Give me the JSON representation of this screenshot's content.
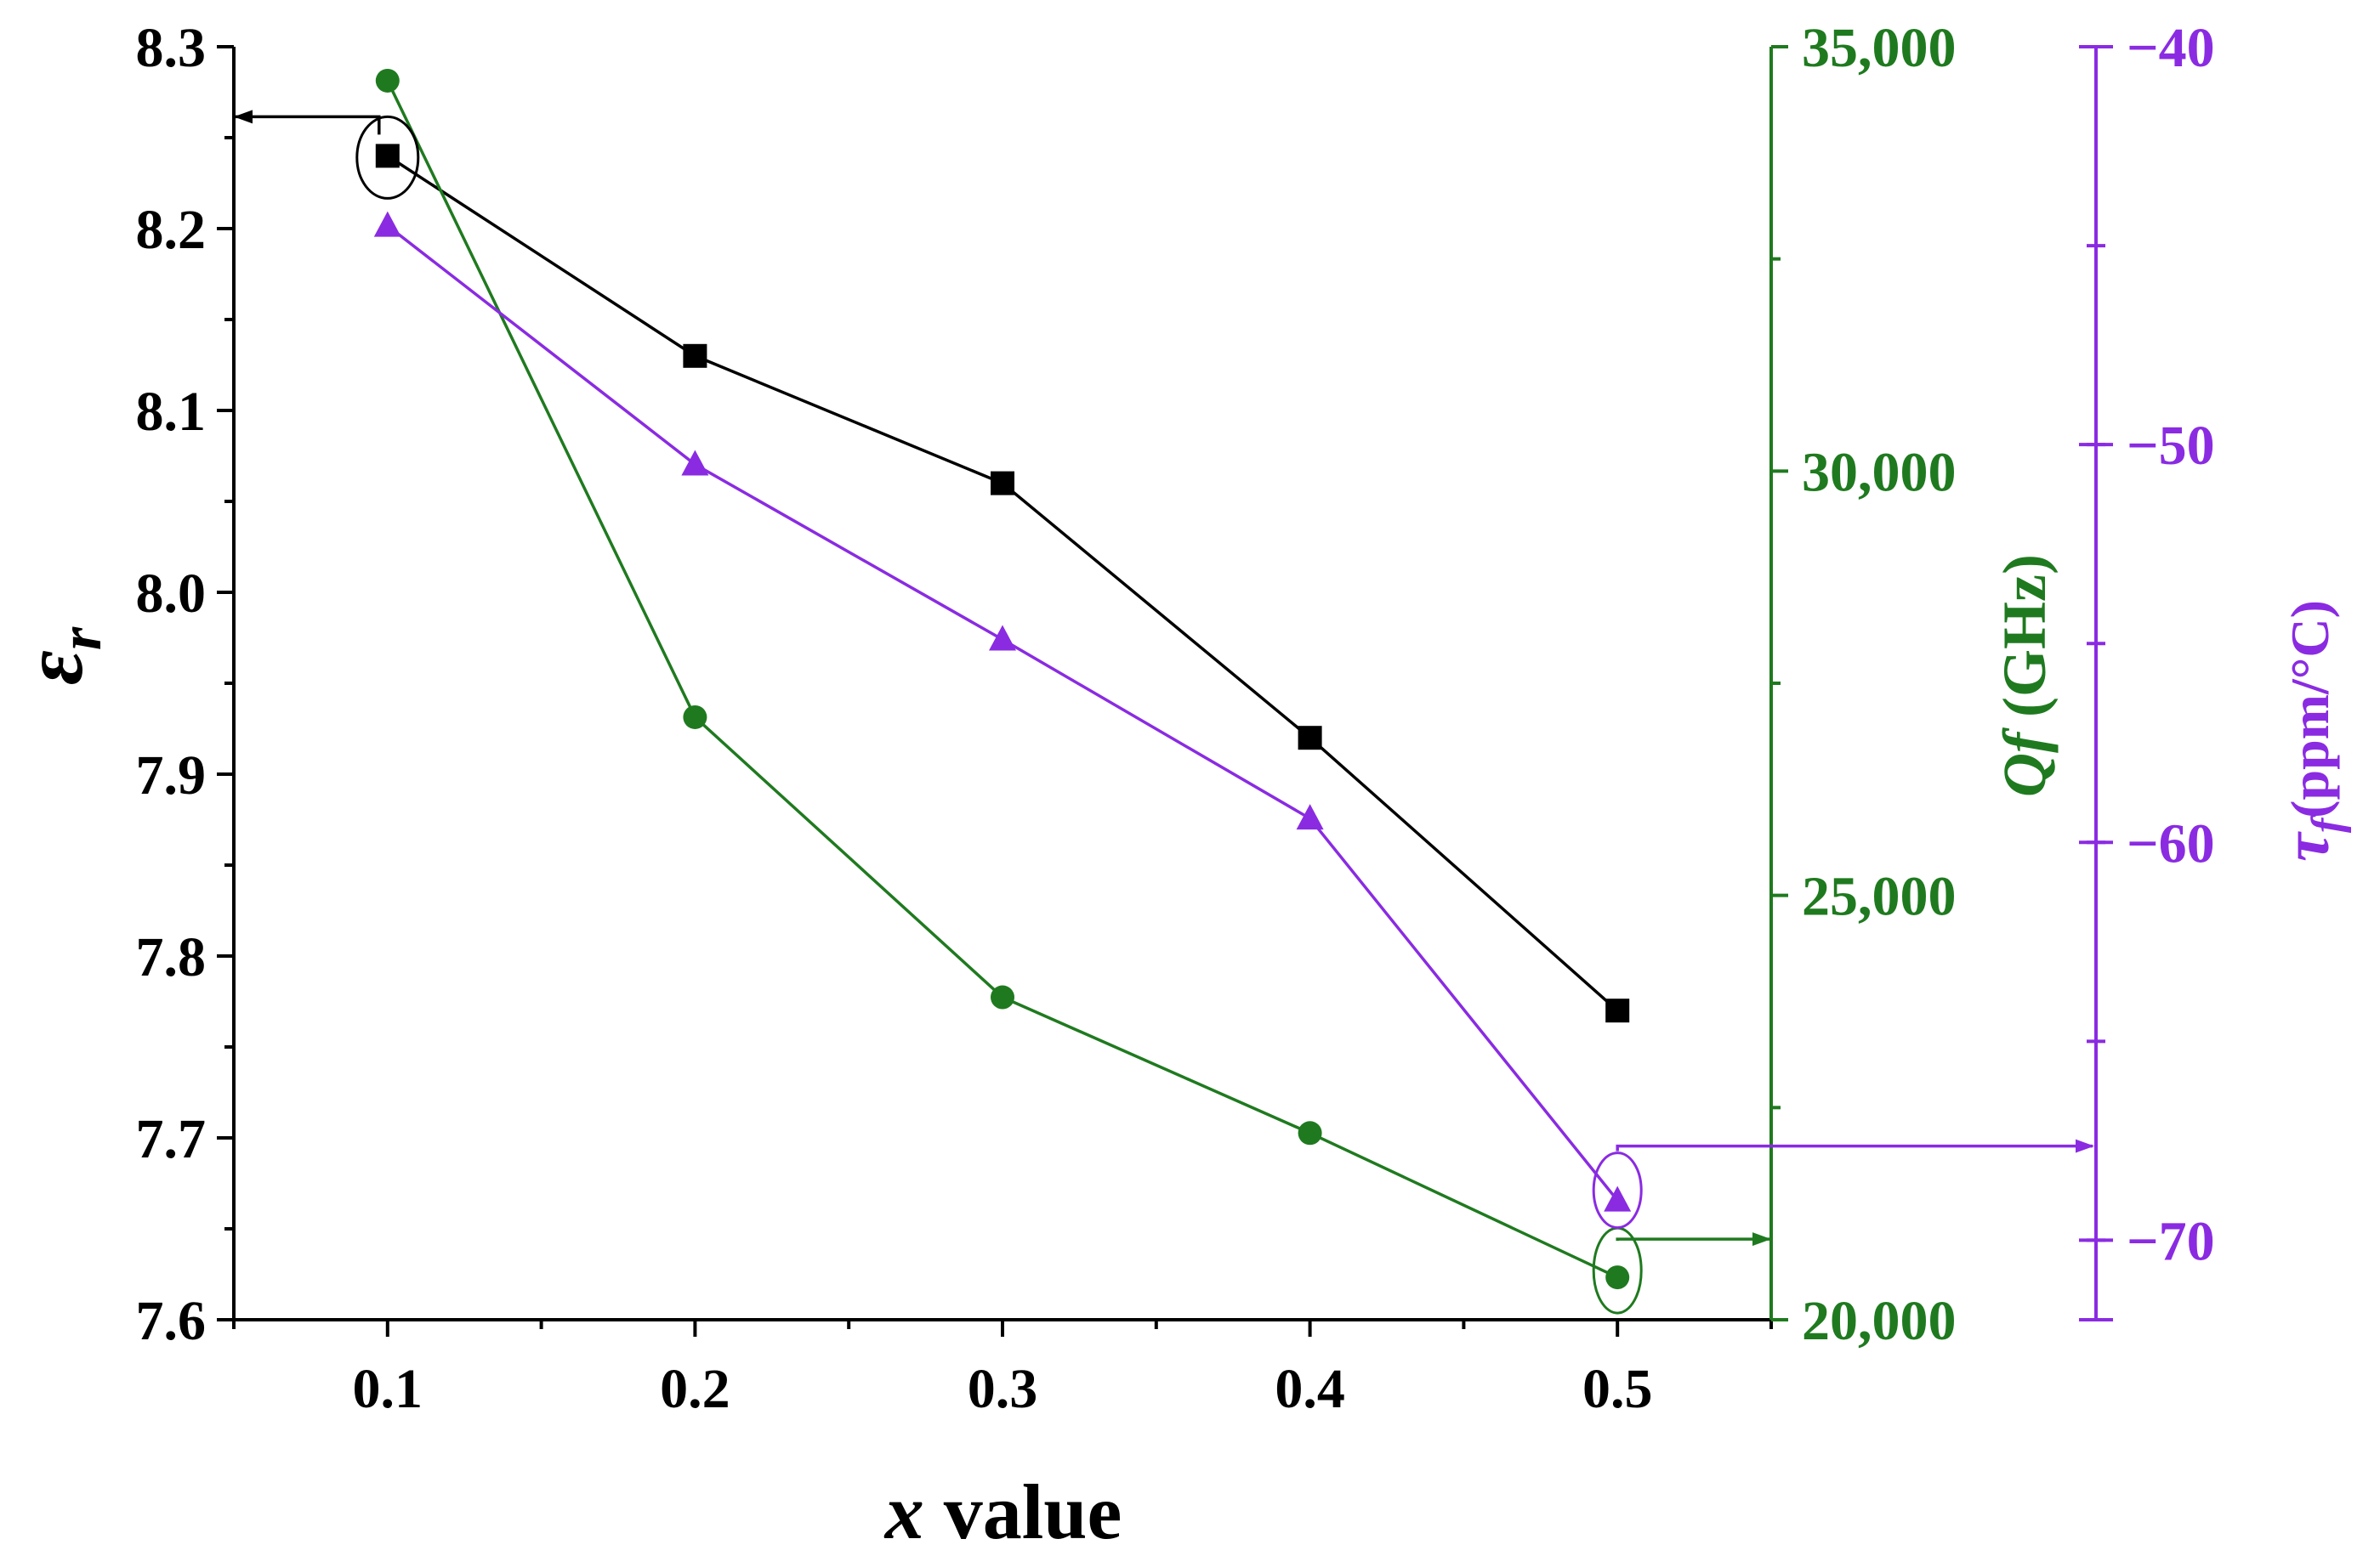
{
  "chart_data": {
    "type": "line",
    "title": "",
    "xlabel_italic": "x",
    "xlabel_rest": " value",
    "x": [
      0.1,
      0.2,
      0.3,
      0.4,
      0.5
    ],
    "xlim": [
      0.05,
      0.55
    ],
    "xticks": [
      "0.1",
      "0.2",
      "0.3",
      "0.4",
      "0.5"
    ],
    "axes": [
      {
        "id": "er",
        "label": "εr",
        "label_main": "ε",
        "label_sub": "r",
        "color": "#000000",
        "ylim": [
          7.6,
          8.3
        ],
        "ticks": [
          7.6,
          7.7,
          7.8,
          7.9,
          8.0,
          8.1,
          8.2,
          8.3
        ],
        "tick_labels": [
          "7.6",
          "7.7",
          "7.8",
          "7.9",
          "8.0",
          "8.1",
          "8.2",
          "8.3"
        ]
      },
      {
        "id": "qf",
        "label": "Qf (GHz)",
        "label_italic": "Qf",
        "label_rest": " (GHz)",
        "color": "#1f7a1f",
        "ylim": [
          20000,
          35000
        ],
        "ticks": [
          20000,
          25000,
          30000,
          35000
        ],
        "tick_labels": [
          "20,000",
          "25,000",
          "30,000",
          "35,000"
        ]
      },
      {
        "id": "tf",
        "label": "τf(ppm/°C)",
        "label_main": "τ",
        "label_sub": "f",
        "label_rest": "(ppm/°C)",
        "color": "#8a2be2",
        "ylim": [
          -72,
          -40
        ],
        "ticks": [
          -40,
          -50,
          -60,
          -70
        ],
        "tick_labels": [
          "−40",
          "−50",
          "−60",
          "−70"
        ]
      }
    ],
    "series": [
      {
        "name": "εr",
        "axis": "er",
        "marker": "square",
        "color": "#000000",
        "values": [
          8.24,
          8.13,
          8.06,
          7.92,
          7.77
        ]
      },
      {
        "name": "Qf",
        "axis": "qf",
        "marker": "circle",
        "color": "#1f7a1f",
        "values": [
          34600,
          27100,
          23800,
          22200,
          20500
        ]
      },
      {
        "name": "τf",
        "axis": "tf",
        "marker": "triangle",
        "color": "#8a2be2",
        "values": [
          -44.5,
          -50.5,
          -54.9,
          -59.4,
          -69.0
        ]
      }
    ],
    "annotations": [
      {
        "series": "εr",
        "point_index": 0,
        "arrow_to_axis": "left"
      },
      {
        "series": "Qf",
        "point_index": 4,
        "arrow_to_axis": "right"
      },
      {
        "series": "τf",
        "point_index": 4,
        "arrow_to_axis": "right"
      }
    ]
  }
}
